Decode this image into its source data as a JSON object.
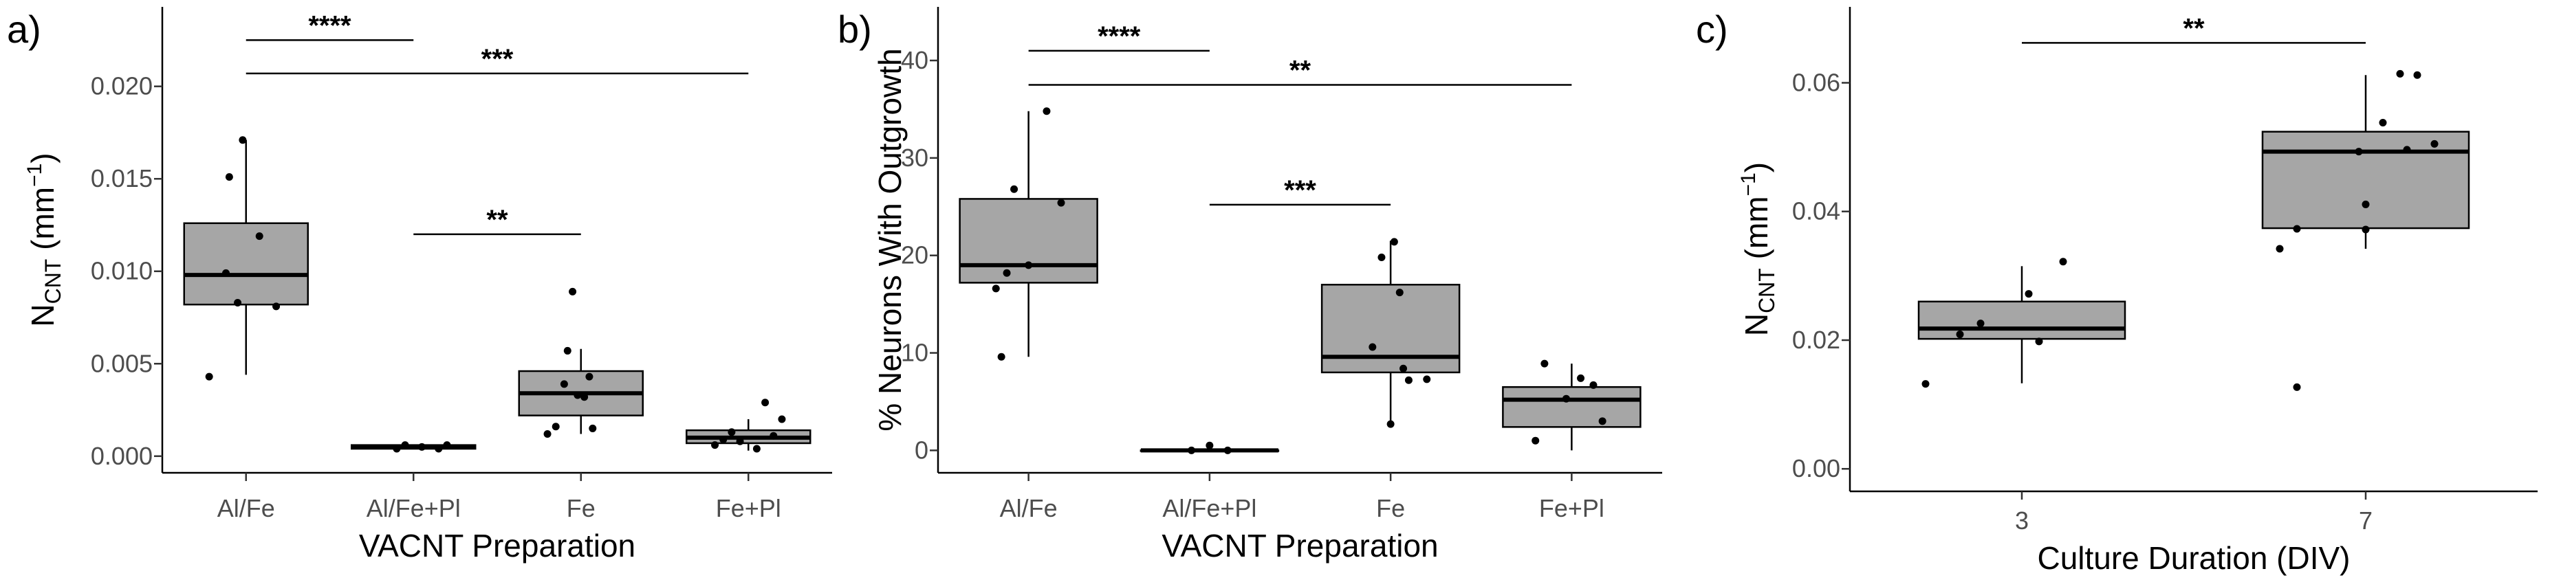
{
  "chart_data": [
    {
      "type": "box",
      "panel_label": "a)",
      "xlabel": "VACNT Preparation",
      "ylabel": {
        "main": "N",
        "sub": "CNT",
        "unit_open": " (mm",
        "unit_sup": "−1",
        "unit_close": ")"
      },
      "ylim": [
        -0.0009,
        0.0243
      ],
      "yticks": [
        0.0,
        0.005,
        0.01,
        0.015,
        0.02
      ],
      "ytick_labels": [
        "0.000",
        "0.005",
        "0.010",
        "0.015",
        "0.020"
      ],
      "categories": [
        "Al/Fe",
        "Al/Fe+Pl",
        "Fe",
        "Fe+Pl"
      ],
      "boxes": [
        {
          "q1": 0.0082,
          "median": 0.0098,
          "q3": 0.0126,
          "whisker_low": 0.0044,
          "whisker_high": 0.0171
        },
        {
          "q1": 0.0004,
          "median": 0.0005,
          "q3": 0.0006,
          "whisker_low": 0.0004,
          "whisker_high": 0.0006
        },
        {
          "q1": 0.0022,
          "median": 0.0034,
          "q3": 0.0046,
          "whisker_low": 0.0012,
          "whisker_high": 0.0058
        },
        {
          "q1": 0.0007,
          "median": 0.001,
          "q3": 0.0014,
          "whisker_low": 0.0003,
          "whisker_high": 0.002
        }
      ],
      "points": [
        [
          [
            -0.02,
            0.0171
          ],
          [
            -0.1,
            0.0151
          ],
          [
            0.08,
            0.0119
          ],
          [
            -0.12,
            0.0099
          ],
          [
            -0.05,
            0.0083
          ],
          [
            0.18,
            0.0081
          ],
          [
            -0.22,
            0.0043
          ]
        ],
        [
          [
            -0.05,
            0.0006
          ],
          [
            0.05,
            0.0005
          ],
          [
            0.15,
            0.0004
          ],
          [
            -0.1,
            0.0004
          ],
          [
            0.2,
            0.0006
          ]
        ],
        [
          [
            -0.05,
            0.0089
          ],
          [
            -0.08,
            0.0057
          ],
          [
            0.05,
            0.0043
          ],
          [
            -0.1,
            0.0039
          ],
          [
            -0.02,
            0.0033
          ],
          [
            0.02,
            0.0032
          ],
          [
            -0.15,
            0.0016
          ],
          [
            0.07,
            0.0015
          ],
          [
            -0.2,
            0.0012
          ]
        ],
        [
          [
            0.1,
            0.0029
          ],
          [
            0.2,
            0.002
          ],
          [
            0.15,
            0.0011
          ],
          [
            -0.1,
            0.0013
          ],
          [
            -0.15,
            0.0009
          ],
          [
            -0.05,
            0.0008
          ],
          [
            -0.2,
            0.0006
          ],
          [
            0.05,
            0.0004
          ]
        ]
      ],
      "significance": [
        {
          "from": 1,
          "to": 2,
          "y": 0.0225,
          "label": "****"
        },
        {
          "from": 1,
          "to": 4,
          "y": 0.0207,
          "label": "***"
        },
        {
          "from": 2,
          "to": 3,
          "y": 0.012,
          "label": "**"
        }
      ],
      "grid": false
    },
    {
      "type": "box",
      "panel_label": "b)",
      "xlabel": "VACNT Preparation",
      "ylabel": {
        "main": "% Neurons With Outgrowth"
      },
      "ylim": [
        -2.3,
        45.5
      ],
      "yticks": [
        0,
        10,
        20,
        30,
        40
      ],
      "ytick_labels": [
        "0",
        "10",
        "20",
        "30",
        "40"
      ],
      "categories": [
        "Al/Fe",
        "Al/Fe+Pl",
        "Fe",
        "Fe+Pl"
      ],
      "boxes": [
        {
          "q1": 17.2,
          "median": 19.0,
          "q3": 25.8,
          "whisker_low": 9.6,
          "whisker_high": 34.8
        },
        {
          "q1": 0.0,
          "median": 0.0,
          "q3": 0.0,
          "whisker_low": 0.0,
          "whisker_high": 0.0
        },
        {
          "q1": 8.0,
          "median": 9.6,
          "q3": 17.0,
          "whisker_low": 2.7,
          "whisker_high": 21.5
        },
        {
          "q1": 2.4,
          "median": 5.2,
          "q3": 6.5,
          "whisker_low": 0.0,
          "whisker_high": 8.9
        }
      ],
      "points": [
        [
          [
            0.1,
            34.8
          ],
          [
            -0.08,
            26.8
          ],
          [
            0.18,
            25.4
          ],
          [
            0.0,
            19.0
          ],
          [
            -0.12,
            18.2
          ],
          [
            -0.18,
            16.6
          ],
          [
            -0.15,
            9.6
          ]
        ],
        [
          [
            0.0,
            0.5
          ],
          [
            -0.1,
            0.0
          ],
          [
            0.1,
            0.0
          ]
        ],
        [
          [
            0.02,
            21.4
          ],
          [
            -0.05,
            19.8
          ],
          [
            0.05,
            16.2
          ],
          [
            -0.1,
            10.6
          ],
          [
            0.07,
            8.4
          ],
          [
            0.2,
            7.3
          ],
          [
            0.1,
            7.2
          ],
          [
            0.0,
            2.7
          ]
        ],
        [
          [
            -0.15,
            8.9
          ],
          [
            0.05,
            7.4
          ],
          [
            0.12,
            6.7
          ],
          [
            -0.03,
            5.3
          ],
          [
            0.17,
            3.0
          ],
          [
            -0.2,
            1.0
          ]
        ]
      ],
      "significance": [
        {
          "from": 1,
          "to": 2,
          "y": 41.0,
          "label": "****"
        },
        {
          "from": 1,
          "to": 4,
          "y": 37.5,
          "label": "**"
        },
        {
          "from": 2,
          "to": 3,
          "y": 25.2,
          "label": "***"
        }
      ],
      "grid": false
    },
    {
      "type": "box",
      "panel_label": "c)",
      "xlabel": "Culture Duration (DIV)",
      "ylabel": {
        "main": "N",
        "sub": "CNT",
        "unit_open": " (mm",
        "unit_sup": "−1",
        "unit_close": ")"
      },
      "ylim": [
        -0.0035,
        0.0718
      ],
      "yticks": [
        0.0,
        0.02,
        0.04,
        0.06
      ],
      "ytick_labels": [
        "0.00",
        "0.02",
        "0.04",
        "0.06"
      ],
      "categories": [
        "3",
        "7"
      ],
      "boxes": [
        {
          "q1": 0.0202,
          "median": 0.0218,
          "q3": 0.026,
          "whisker_low": 0.0133,
          "whisker_high": 0.0315
        },
        {
          "q1": 0.0374,
          "median": 0.0493,
          "q3": 0.0524,
          "whisker_low": 0.0342,
          "whisker_high": 0.0612
        }
      ],
      "points": [
        [
          [
            0.12,
            0.0322
          ],
          [
            0.02,
            0.0272
          ],
          [
            -0.12,
            0.0226
          ],
          [
            -0.18,
            0.0209
          ],
          [
            0.05,
            0.0198
          ],
          [
            -0.28,
            0.0132
          ]
        ],
        [
          [
            0.15,
            0.0612
          ],
          [
            0.1,
            0.0614
          ],
          [
            0.05,
            0.0538
          ],
          [
            0.2,
            0.0505
          ],
          [
            -0.02,
            0.0493
          ],
          [
            0.12,
            0.0496
          ],
          [
            0.0,
            0.0411
          ],
          [
            0.0,
            0.0372
          ],
          [
            -0.2,
            0.0373
          ],
          [
            -0.25,
            0.0342
          ],
          [
            -0.2,
            0.0127
          ]
        ]
      ],
      "significance": [
        {
          "from": 1,
          "to": 2,
          "y": 0.0662,
          "label": "**"
        }
      ],
      "grid": false
    }
  ]
}
